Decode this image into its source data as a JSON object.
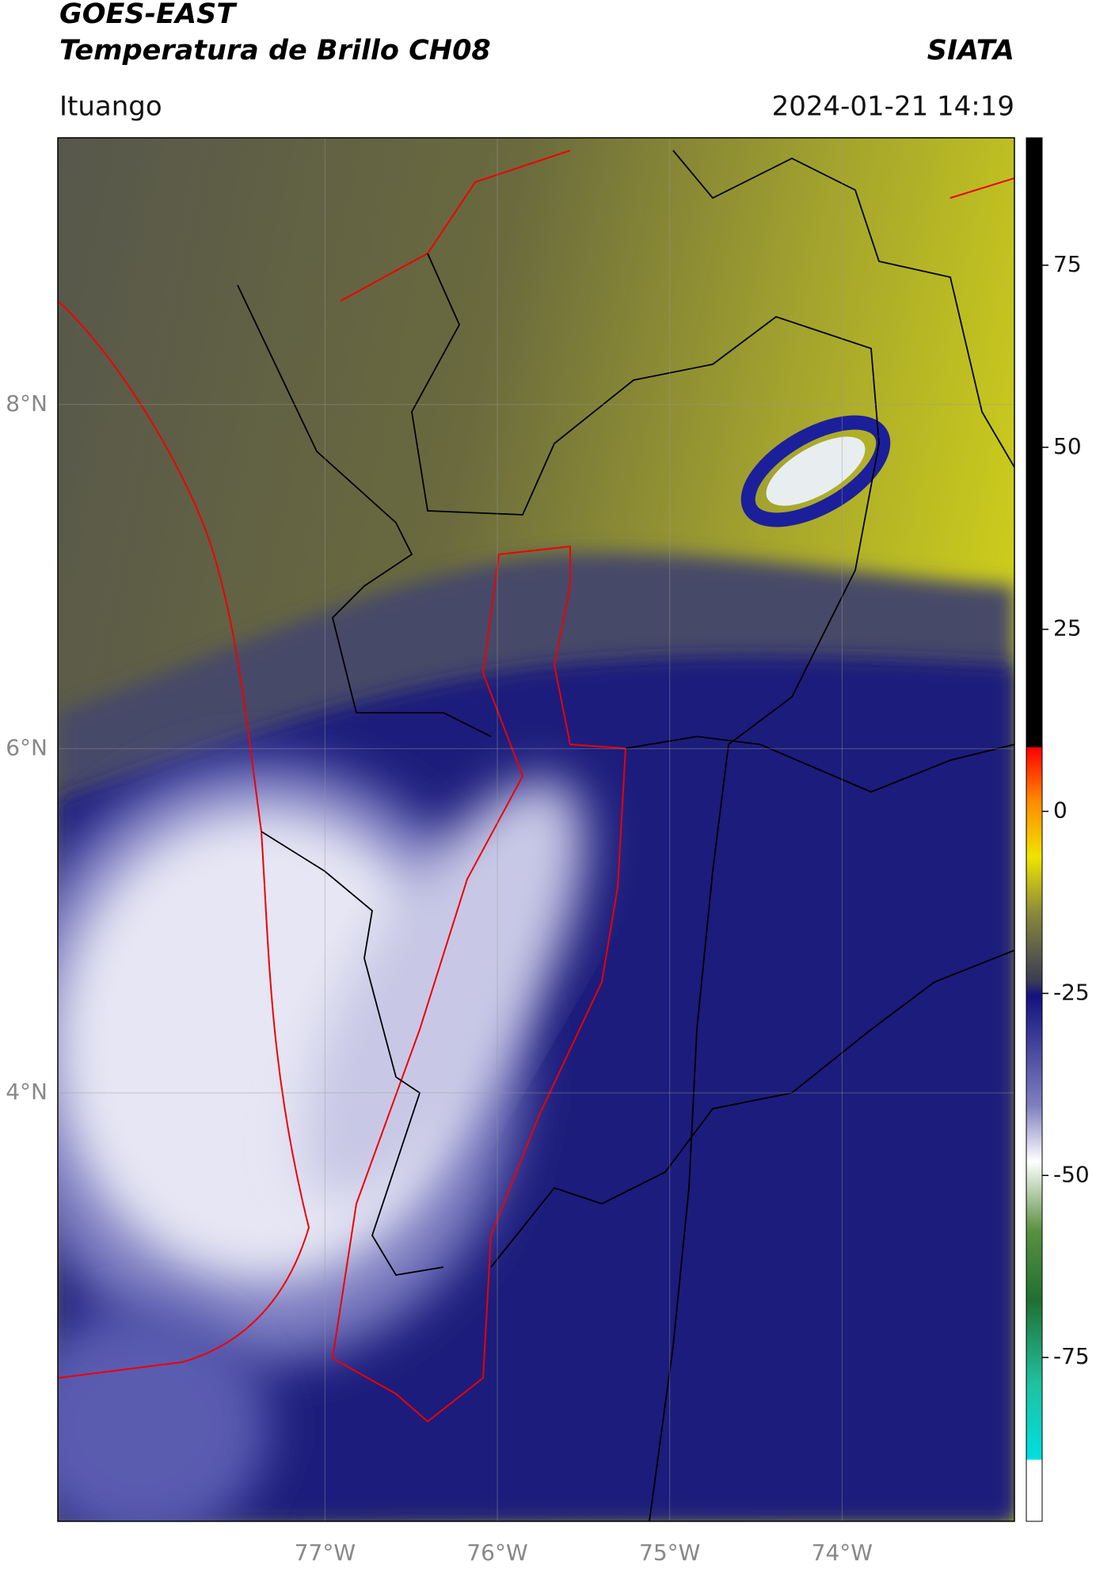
{
  "header": {
    "title": "GOES-EAST",
    "subtitle": "Temperatura de Brillo CH08",
    "source": "SIATA",
    "location": "Ituango",
    "datetime": "2024-01-21 14:19"
  },
  "map": {
    "xlim": [
      -78.55,
      -73.0
    ],
    "ylim": [
      1.51,
      9.55
    ],
    "xticks": [
      {
        "value": -77,
        "label": "77°W"
      },
      {
        "value": -76,
        "label": "76°W"
      },
      {
        "value": -75,
        "label": "75°W"
      },
      {
        "value": -74,
        "label": "74°W"
      }
    ],
    "yticks": [
      {
        "value": 8,
        "label": "8°N"
      },
      {
        "value": 6,
        "label": "6°N"
      },
      {
        "value": 4,
        "label": "4°N"
      }
    ],
    "grid": true
  },
  "colorbar": {
    "lim": [
      -97.5,
      92.5
    ],
    "ticks": [
      75,
      50,
      25,
      0,
      -25,
      -50,
      -75
    ]
  }
}
